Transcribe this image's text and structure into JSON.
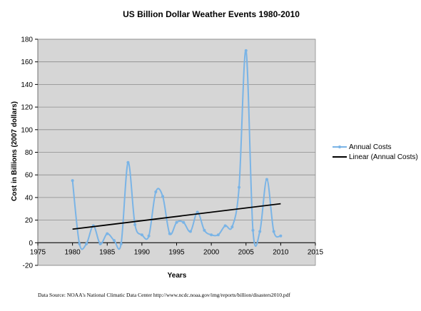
{
  "chart_data": {
    "type": "line",
    "title": "US Billion Dollar Weather Events 1980-2010",
    "xlabel": "Years",
    "ylabel": "Cost in Billions (2007 dollars)",
    "xlim": [
      1975,
      2015
    ],
    "ylim": [
      -20,
      180
    ],
    "x_ticks": [
      "1975",
      "1980",
      "1985",
      "1990",
      "1995",
      "2000",
      "2005",
      "2010",
      "2015"
    ],
    "y_ticks": [
      "-20",
      "0",
      "20",
      "40",
      "60",
      "80",
      "100",
      "120",
      "140",
      "160",
      "180"
    ],
    "grid": true,
    "legend_position": "right",
    "background_color": "#d6d6d6",
    "series": [
      {
        "name": "Annual Costs",
        "color": "#7ab4e6",
        "smooth": true,
        "markers": true,
        "x": [
          1980,
          1981,
          1982,
          1983,
          1984,
          1985,
          1986,
          1987,
          1988,
          1989,
          1990,
          1991,
          1992,
          1993,
          1994,
          1995,
          1996,
          1997,
          1998,
          1999,
          2000,
          2001,
          2002,
          2003,
          2004,
          2005,
          2006,
          2007,
          2008,
          2009,
          2010
        ],
        "y": [
          55,
          -1,
          -1,
          15,
          -1,
          8,
          2,
          -1,
          71,
          16,
          7,
          6,
          45,
          41,
          8,
          18,
          18,
          10,
          27,
          11,
          7,
          7,
          15,
          14,
          49,
          170,
          11,
          10,
          56,
          10,
          6
        ]
      },
      {
        "name": "Linear (Annual Costs)",
        "color": "#000000",
        "smooth": false,
        "markers": false,
        "x": [
          1980,
          2010
        ],
        "y": [
          12,
          34.5
        ]
      }
    ]
  },
  "source_note": "Data Source: NOAA's National Climatic Data Center http://www.ncdc.noaa.gov/img/reports/billion/disasters2010.pdf"
}
